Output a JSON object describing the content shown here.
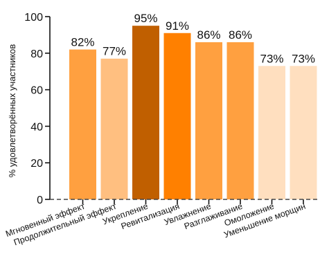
{
  "chart_data": {
    "type": "bar",
    "categories": [
      "Мгновенный эффект",
      "Продолжительный эффект",
      "Укрепление",
      "Ревитализация",
      "Увлажнение",
      "Разглаживание",
      "Омоложение",
      "Уменьшение морщин"
    ],
    "values": [
      82,
      77,
      95,
      91,
      86,
      86,
      73,
      73
    ],
    "data_labels": [
      "82%",
      "77%",
      "95%",
      "91%",
      "86%",
      "86%",
      "73%",
      "73%"
    ],
    "colors": [
      "#FFA040",
      "#FFBF80",
      "#C05F00",
      "#FF8000",
      "#FFA040",
      "#FFA040",
      "#FFDFBF",
      "#FFDFBF"
    ],
    "ylabel": "% удовлетворённых участников",
    "xlabel": "",
    "title": "",
    "ylim": [
      0,
      100
    ],
    "yticks": [
      0,
      20,
      40,
      60,
      80,
      100
    ],
    "grid": false,
    "baseline_style": "dashed"
  }
}
